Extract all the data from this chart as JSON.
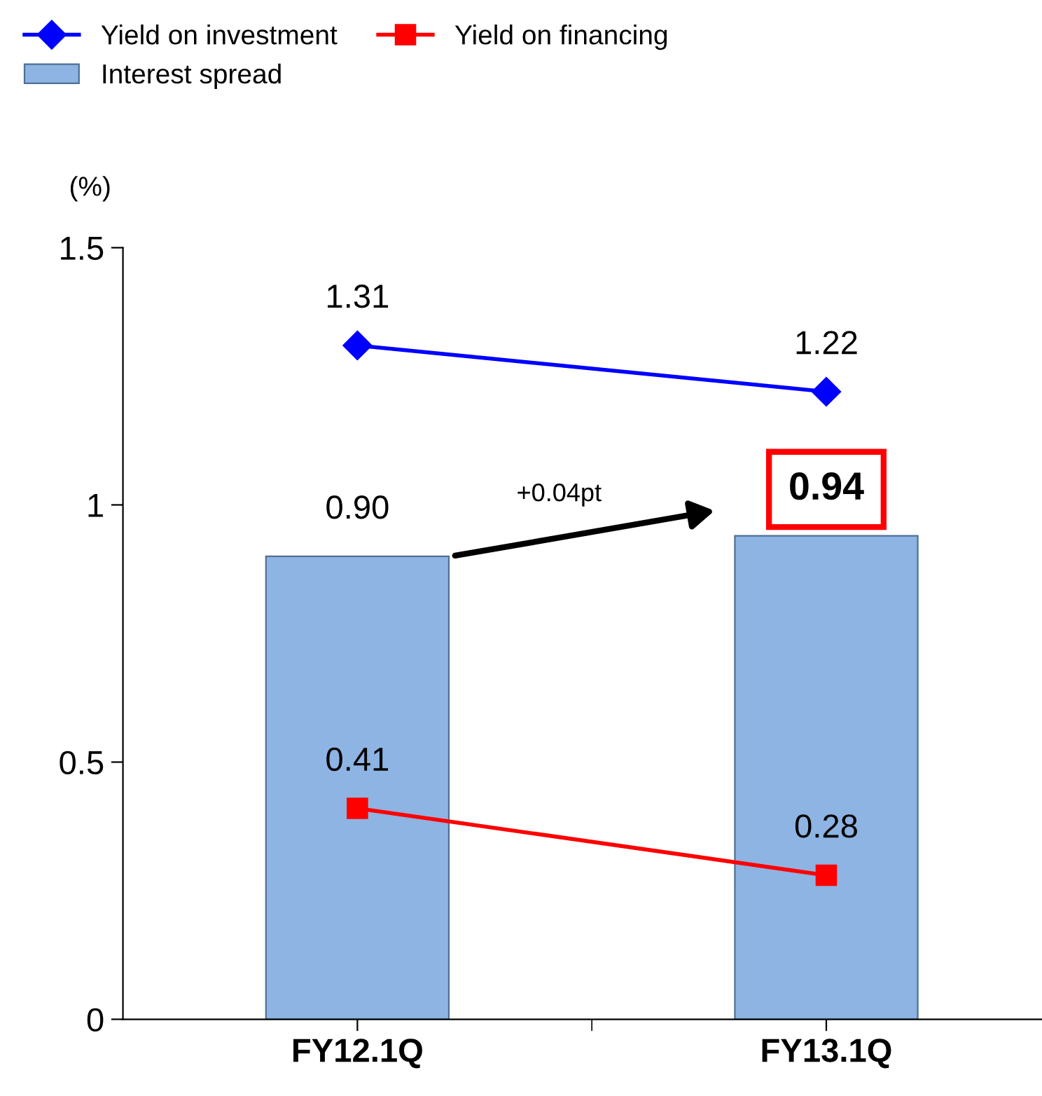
{
  "chart_data": {
    "type": "bar",
    "ylabel": "(%)",
    "categories": [
      "FY12.1Q",
      "FY13.1Q"
    ],
    "series": [
      {
        "name": "Interest spread",
        "color": "#8db4e2",
        "values": [
          0.9,
          0.94
        ],
        "value_labels": [
          "0.90",
          "0.94"
        ]
      },
      {
        "name": "Yield on investment",
        "type": "line",
        "color": "#0000ff",
        "marker": "diamond",
        "values": [
          1.31,
          1.22
        ],
        "value_labels": [
          "1.31",
          "1.22"
        ]
      },
      {
        "name": "Yield on financing",
        "type": "line",
        "color": "#ff0000",
        "marker": "square",
        "values": [
          0.41,
          0.28
        ],
        "value_labels": [
          "0.41",
          "0.28"
        ]
      }
    ],
    "ylim": [
      0,
      1.5
    ],
    "yticks": [
      0,
      0.5,
      1,
      1.5
    ],
    "legend": "top left",
    "annotations": [
      "+0.04pt"
    ]
  }
}
